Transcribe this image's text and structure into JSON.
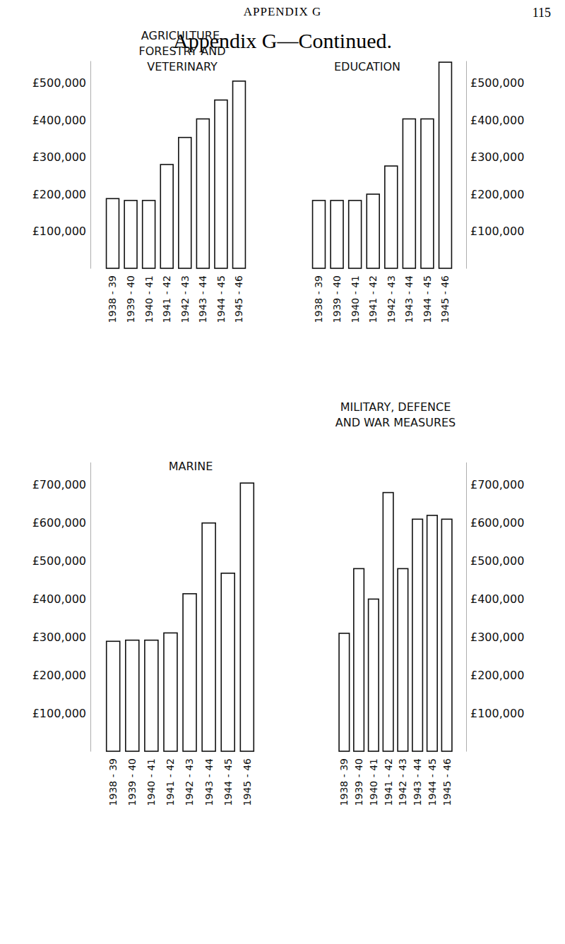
{
  "page": {
    "running_head": "APPENDIX G",
    "page_number": "115",
    "heading": "Appendix G—Continued."
  },
  "chart_data": [
    {
      "type": "bar",
      "title": "AGRICULTURE, FORESTRY AND VETERINARY",
      "categories": [
        "1938 - 39",
        "1939 - 40",
        "1940 - 41",
        "1941 - 42",
        "1942 - 43",
        "1943 - 44",
        "1944 - 45",
        "1945 - 46"
      ],
      "values": [
        188000,
        183000,
        183000,
        280000,
        353000,
        403000,
        454000,
        505000
      ],
      "color": "#ffffff",
      "ylim": [
        0,
        560000
      ],
      "yticks": [
        {
          "value": 100000,
          "label": "£100,000"
        },
        {
          "value": 200000,
          "label": "£200,000"
        },
        {
          "value": 300000,
          "label": "£300,000"
        },
        {
          "value": 400000,
          "label": "£400,000"
        },
        {
          "value": 500000,
          "label": "£500,000"
        }
      ],
      "grid": false
    },
    {
      "type": "bar",
      "title": "EDUCATION",
      "categories": [
        "1938 - 39",
        "1939 - 40",
        "1940 - 41",
        "1941 - 42",
        "1942 - 43",
        "1943 - 44",
        "1944 - 45",
        "1945 - 46"
      ],
      "values": [
        183000,
        183000,
        183000,
        200000,
        276000,
        403000,
        403000,
        556000
      ],
      "color": "#ffffff",
      "ylim": [
        0,
        560000
      ],
      "yticks": [
        {
          "value": 100000,
          "label": "£100,000"
        },
        {
          "value": 200000,
          "label": "£200,000"
        },
        {
          "value": 300000,
          "label": "£300,000"
        },
        {
          "value": 400000,
          "label": "£400,000"
        },
        {
          "value": 500000,
          "label": "£500,000"
        }
      ],
      "grid": false
    },
    {
      "type": "bar",
      "title": "MARINE",
      "categories": [
        "1938 - 39",
        "1939 - 40",
        "1940 - 41",
        "1941 - 42",
        "1942 - 43",
        "1943 - 44",
        "1944 - 45",
        "1945 - 46"
      ],
      "values": [
        289000,
        292000,
        292000,
        311000,
        414000,
        600000,
        468000,
        705000
      ],
      "color": "#ffffff",
      "ylim": [
        0,
        760000
      ],
      "yticks": [
        {
          "value": 100000,
          "label": "£100,000"
        },
        {
          "value": 200000,
          "label": "£200,000"
        },
        {
          "value": 300000,
          "label": "£300,000"
        },
        {
          "value": 400000,
          "label": "£400,000"
        },
        {
          "value": 500000,
          "label": "£500,000"
        },
        {
          "value": 600000,
          "label": "£600,000"
        },
        {
          "value": 700000,
          "label": "£700,000"
        }
      ],
      "grid": false
    },
    {
      "type": "bar",
      "title": "MILITARY, DEFENCE AND WAR MEASURES",
      "categories": [
        "1938 - 39",
        "1939 - 40",
        "1940 - 41",
        "1941 - 42",
        "1942 - 43",
        "1943 - 44",
        "1944 - 45",
        "1945 - 46"
      ],
      "values": [
        310000,
        480000,
        400000,
        680000,
        480000,
        610000,
        620000,
        610000
      ],
      "color": "#ffffff",
      "ylim": [
        0,
        760000
      ],
      "yticks": [
        {
          "value": 100000,
          "label": "£100,000"
        },
        {
          "value": 200000,
          "label": "£200,000"
        },
        {
          "value": 300000,
          "label": "£300,000"
        },
        {
          "value": 400000,
          "label": "£400,000"
        },
        {
          "value": 500000,
          "label": "£500,000"
        },
        {
          "value": 600000,
          "label": "£600,000"
        },
        {
          "value": 700000,
          "label": "£700,000"
        }
      ],
      "grid": false
    }
  ]
}
